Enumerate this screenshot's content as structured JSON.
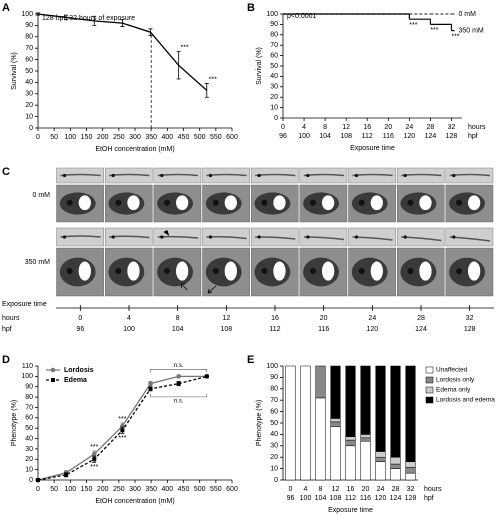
{
  "chart_data": [
    {
      "panel": "A",
      "type": "line",
      "title": "128 hpf; 32 hours of exposure",
      "x_label": "EtOH concentration (mM)",
      "y_label": "Survival (%)",
      "x": [
        0,
        87,
        174,
        261,
        348,
        435,
        522
      ],
      "series": [
        {
          "color": "#000000",
          "values": [
            100,
            97,
            94,
            92,
            84,
            55,
            33
          ],
          "errors": [
            1,
            2,
            4,
            3,
            3,
            12,
            6
          ]
        }
      ],
      "annotations": [
        {
          "text": "***",
          "x": 435,
          "series": 0
        },
        {
          "text": "***",
          "x": 522,
          "series": 0
        }
      ],
      "reference_x": 350,
      "xlim": [
        0,
        600
      ],
      "xticks": [
        0,
        50,
        100,
        150,
        200,
        250,
        300,
        350,
        400,
        450,
        500,
        550,
        600
      ],
      "ylim": [
        0,
        100
      ],
      "yticks": [
        0,
        10,
        20,
        30,
        40,
        50,
        60,
        70,
        80,
        90,
        100
      ]
    },
    {
      "panel": "B",
      "type": "step",
      "annotation": "p<0.0001",
      "x_label": "Exposure time",
      "y_label": "Survival (%)",
      "row_labels": [
        "hours",
        "hpf"
      ],
      "x": [
        0,
        4,
        8,
        12,
        16,
        20,
        24,
        28,
        32
      ],
      "hpf": [
        96,
        100,
        104,
        108,
        112,
        116,
        120,
        124,
        128
      ],
      "series": [
        {
          "name": "0 mM",
          "color": "#444444",
          "dash": true,
          "values": [
            100,
            100,
            100,
            100,
            100,
            100,
            100,
            100,
            100
          ]
        },
        {
          "name": "350 mM",
          "color": "#000000",
          "values": [
            100,
            100,
            100,
            100,
            100,
            100,
            95,
            90,
            84
          ]
        }
      ],
      "annotations": [
        {
          "text": "***",
          "x": 24,
          "series": 1
        },
        {
          "text": "***",
          "x": 28,
          "series": 1
        },
        {
          "text": "***",
          "x": 32,
          "series": 1
        }
      ],
      "xlim": [
        0,
        34
      ],
      "xticks": [
        0,
        4,
        8,
        12,
        16,
        20,
        24,
        28,
        32
      ],
      "ylim": [
        0,
        100
      ],
      "yticks": [
        0,
        10,
        20,
        30,
        40,
        50,
        60,
        70,
        80,
        90,
        100
      ]
    },
    {
      "panel": "D",
      "type": "line",
      "x_label": "EtOH concentration (mM)",
      "y_label": "Phenotype (%)",
      "x": [
        0,
        87,
        174,
        261,
        348,
        435,
        522
      ],
      "series": [
        {
          "name": "Lordosis",
          "color": "#777777",
          "marker": "circle",
          "values": [
            0,
            7,
            25,
            52,
            93,
            100,
            100
          ],
          "errors": [
            1,
            2,
            3,
            3,
            2,
            1,
            0
          ]
        },
        {
          "name": "Edema",
          "color": "#000000",
          "marker": "square",
          "dash": true,
          "values": [
            0,
            5,
            20,
            48,
            88,
            93,
            100
          ],
          "errors": [
            1,
            2,
            3,
            3,
            2,
            2,
            0
          ]
        }
      ],
      "annotations": [
        {
          "text": "***",
          "x": 174,
          "series": 0
        },
        {
          "text": "***",
          "x": 261,
          "series": 0
        },
        {
          "text": "***",
          "x": 174,
          "series": 1
        },
        {
          "text": "***",
          "x": 261,
          "series": 1
        }
      ],
      "brackets": [
        {
          "text": "n.s.",
          "from": 348,
          "to": 522,
          "series": 0
        },
        {
          "text": "n.s.",
          "from": 348,
          "to": 522,
          "series": 1
        }
      ],
      "legend": "upper left",
      "xlim": [
        0,
        600
      ],
      "xticks": [
        0,
        50,
        100,
        150,
        200,
        250,
        300,
        350,
        400,
        450,
        500,
        550,
        600
      ],
      "ylim": [
        0,
        110
      ],
      "yticks": [
        0,
        10,
        20,
        30,
        40,
        50,
        60,
        70,
        80,
        90,
        100,
        110
      ]
    },
    {
      "panel": "E",
      "type": "stacked_bar",
      "x_label": "Exposure time",
      "y_label": "Phenotype (%)",
      "row_labels": [
        "hours",
        "hpf"
      ],
      "categories": [
        0,
        4,
        8,
        12,
        16,
        20,
        24,
        28,
        32
      ],
      "hpf": [
        96,
        100,
        104,
        108,
        112,
        116,
        120,
        124,
        128
      ],
      "series": [
        {
          "name": "Unaffected",
          "color": "#ffffff",
          "values": [
            100,
            100,
            72,
            47,
            30,
            34,
            16,
            10,
            6
          ]
        },
        {
          "name": "Lordosis only",
          "color": "#888888",
          "values": [
            0,
            0,
            28,
            4,
            5,
            3,
            4,
            4,
            5
          ]
        },
        {
          "name": "Edema only",
          "color": "#cccccc",
          "values": [
            0,
            0,
            0,
            3,
            3,
            3,
            5,
            6,
            5
          ]
        },
        {
          "name": "Lordosis and edema",
          "color": "#000000",
          "values": [
            0,
            0,
            0,
            46,
            62,
            60,
            75,
            80,
            84
          ]
        }
      ],
      "legend": "right",
      "ylim": [
        0,
        100
      ],
      "yticks": [
        0,
        10,
        20,
        30,
        40,
        50,
        60,
        70,
        80,
        90,
        100
      ]
    }
  ],
  "panel_c": {
    "panel": "C",
    "rows": [
      "0 mM",
      "350 mM"
    ],
    "timeline": {
      "title": "Exposure time",
      "row_labels": [
        "hours",
        "hpf"
      ],
      "hours": [
        0,
        4,
        8,
        12,
        16,
        20,
        24,
        28,
        32
      ],
      "hpf": [
        96,
        100,
        104,
        108,
        112,
        116,
        120,
        124,
        128
      ]
    }
  }
}
